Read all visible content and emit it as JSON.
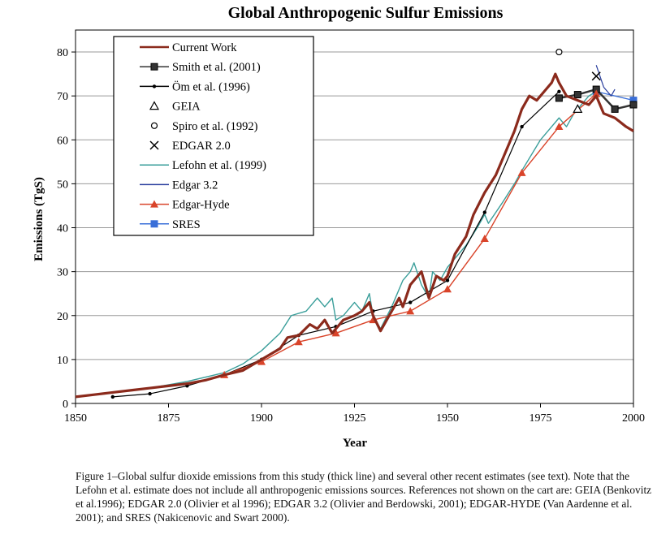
{
  "chart_data": {
    "type": "line",
    "title": "Global Anthropogenic Sulfur Emissions",
    "xlabel": "Year",
    "ylabel": "Emissions (TgS)",
    "xlim": [
      1850,
      2000
    ],
    "ylim": [
      0,
      85
    ],
    "xticks": [
      1850,
      1875,
      1900,
      1925,
      1950,
      1975,
      2000
    ],
    "yticks": [
      0,
      10,
      20,
      30,
      40,
      50,
      60,
      70,
      80
    ],
    "grid": "horizontal",
    "legend_position": "top-left",
    "series": [
      {
        "name": "Current Work",
        "color": "#8b2a1c",
        "marker": "none",
        "style": "thick",
        "x": [
          1850,
          1855,
          1860,
          1865,
          1870,
          1875,
          1880,
          1885,
          1890,
          1895,
          1900,
          1903,
          1905,
          1907,
          1910,
          1913,
          1915,
          1917,
          1919,
          1920,
          1922,
          1925,
          1927,
          1929,
          1930,
          1932,
          1935,
          1937,
          1938,
          1940,
          1943,
          1945,
          1947,
          1949,
          1950,
          1952,
          1955,
          1957,
          1960,
          1963,
          1965,
          1968,
          1970,
          1972,
          1974,
          1976,
          1978,
          1979,
          1980,
          1982,
          1985,
          1988,
          1990,
          1992,
          1995,
          1998,
          2000
        ],
        "y": [
          1.5,
          2,
          2.5,
          3,
          3.5,
          4,
          4.5,
          5.3,
          6.5,
          7.5,
          10,
          11.5,
          12.5,
          15,
          15.5,
          18,
          17,
          19,
          16,
          17,
          19,
          20,
          21,
          23,
          20,
          16.5,
          21,
          24,
          22,
          27,
          30,
          24,
          29,
          28,
          29,
          34,
          38,
          43,
          48,
          52,
          56,
          62,
          67,
          70,
          69,
          71,
          73,
          75,
          73,
          70,
          69,
          68,
          70,
          66,
          65,
          63,
          62
        ]
      },
      {
        "name": "Smith et al. (2001)",
        "color": "#333333",
        "marker": "square",
        "x": [
          1980,
          1985,
          1990,
          1995,
          2000
        ],
        "y": [
          69.5,
          70.3,
          71.5,
          67,
          68
        ]
      },
      {
        "name": "Öm et al. (1996)",
        "color": "#000000",
        "marker": "dot",
        "x": [
          1860,
          1870,
          1880,
          1890,
          1900,
          1910,
          1920,
          1930,
          1940,
          1950,
          1960,
          1970,
          1980
        ],
        "y": [
          1.5,
          2.2,
          4,
          6.5,
          10,
          15.5,
          17.5,
          21,
          23,
          28,
          43.5,
          63,
          71
        ]
      },
      {
        "name": "GEIA",
        "color": "#000000",
        "marker": "triangle-open",
        "x": [
          1985
        ],
        "y": [
          67
        ]
      },
      {
        "name": "Spiro et al. (1992)",
        "color": "#000000",
        "marker": "circle-open",
        "x": [
          1980
        ],
        "y": [
          80
        ]
      },
      {
        "name": "EDGAR 2.0",
        "color": "#000000",
        "marker": "x",
        "x": [
          1990
        ],
        "y": [
          74.5
        ]
      },
      {
        "name": "Lefohn et al. (1999)",
        "color": "#3a9e9a",
        "marker": "none",
        "x": [
          1850,
          1860,
          1870,
          1880,
          1890,
          1895,
          1900,
          1905,
          1908,
          1912,
          1915,
          1917,
          1919,
          1920,
          1922,
          1925,
          1927,
          1929,
          1930,
          1932,
          1935,
          1938,
          1940,
          1941,
          1943,
          1945,
          1946,
          1948,
          1950,
          1953,
          1955,
          1958,
          1960,
          1961,
          1965,
          1968,
          1970,
          1975,
          1978,
          1980,
          1982,
          1984,
          1986,
          1988,
          1990
        ],
        "y": [
          1.6,
          2.5,
          3.5,
          5,
          7,
          9,
          12,
          16,
          20,
          21,
          24,
          22,
          24,
          19,
          20,
          23,
          21,
          25,
          20,
          17,
          22,
          28,
          30,
          32,
          27,
          24,
          30,
          28,
          31,
          34,
          36,
          40,
          43,
          41,
          46,
          50,
          53,
          60,
          63,
          65,
          63,
          66,
          68,
          70,
          71
        ]
      },
      {
        "name": "Edgar 3.2",
        "color": "#2a3f9e",
        "marker": "none",
        "x": [
          1990,
          1992,
          1994,
          1995
        ],
        "y": [
          77,
          72,
          70,
          71.5
        ]
      },
      {
        "name": "Edgar-Hyde",
        "color": "#d9442a",
        "marker": "triangle",
        "x": [
          1890,
          1900,
          1910,
          1920,
          1930,
          1940,
          1950,
          1960,
          1970,
          1980,
          1990
        ],
        "y": [
          6.5,
          9.5,
          14,
          16,
          19,
          21,
          26,
          37.5,
          52.5,
          63,
          70.5
        ]
      },
      {
        "name": "SRES",
        "color": "#3a6fd8",
        "marker": "square",
        "x": [
          1990,
          2000
        ],
        "y": [
          71,
          69
        ]
      }
    ]
  },
  "caption": {
    "text": "Figure 1–Global sulfur dioxide emissions from this study (thick line) and several other recent estimates (see text). Note that the Lefohn et al. estimate does not include all anthropogenic emissions sources.  References not shown on the cart are: GEIA (Benkovitz et al.1996); EDGAR 2.0 (Olivier et al 1996); EDGAR 3.2 (Olivier and Berdowski, 2001); EDGAR-HYDE (Van Aardenne et al. 2001); and SRES (Nakicenovic and Swart 2000)."
  }
}
